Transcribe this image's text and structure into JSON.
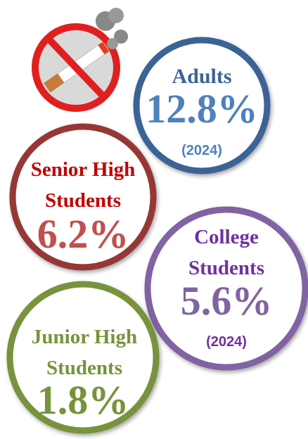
{
  "circles": [
    {
      "lines": [
        "Adults"
      ],
      "value": "12.8%",
      "note": "(2024)"
    },
    {
      "lines": [
        "Senior High",
        "Students"
      ],
      "value": "6.2%"
    },
    {
      "lines": [
        "College",
        "Students"
      ],
      "value": "5.6%",
      "note": "(2024)"
    },
    {
      "lines": [
        "Junior High",
        "Students"
      ],
      "value": "1.8%"
    }
  ]
}
